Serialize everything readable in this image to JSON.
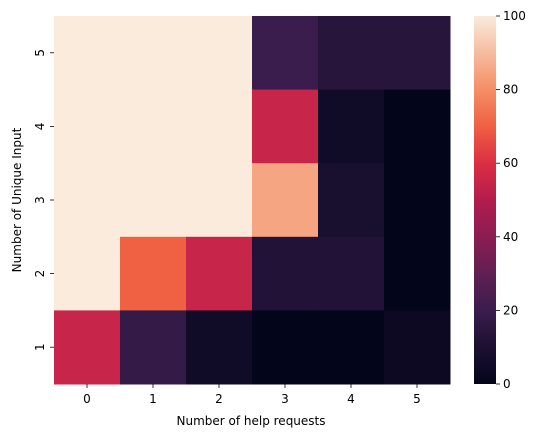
{
  "chart_data": {
    "type": "heatmap",
    "title": "",
    "xlabel": "Number of help requests",
    "ylabel": "Number of Unique Input",
    "x_categories": [
      "0",
      "1",
      "2",
      "3",
      "4",
      "5"
    ],
    "y_categories": [
      "5",
      "4",
      "3",
      "2",
      "1"
    ],
    "values": [
      [
        100,
        100,
        100,
        20,
        14,
        14
      ],
      [
        100,
        100,
        100,
        55,
        5,
        0
      ],
      [
        100,
        100,
        100,
        85,
        9,
        0
      ],
      [
        100,
        70,
        55,
        12,
        12,
        0
      ],
      [
        55,
        18,
        5,
        0,
        0,
        4
      ]
    ],
    "colorbar": {
      "min": 0,
      "max": 100,
      "ticks": [
        "0",
        "20",
        "40",
        "60",
        "80",
        "100"
      ]
    },
    "colormap": "rocket",
    "grid": false,
    "legend": "colorbar-right"
  }
}
